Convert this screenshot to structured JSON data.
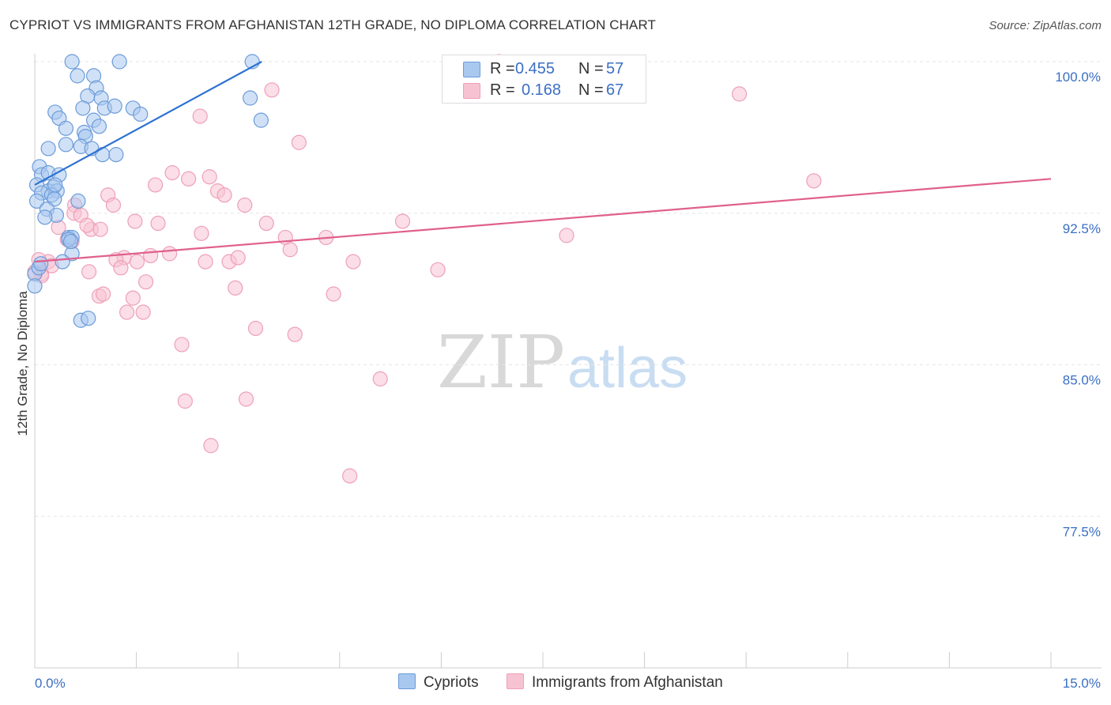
{
  "title": "CYPRIOT VS IMMIGRANTS FROM AFGHANISTAN 12TH GRADE, NO DIPLOMA CORRELATION CHART",
  "source": "Source: ZipAtlas.com",
  "watermark": {
    "zip": "ZIP",
    "atlas": "atlas"
  },
  "colors": {
    "blue_fill": "#a9c8f0",
    "blue_stroke": "#6b9bd8",
    "blue_line": "#2e72d2",
    "pink_fill": "#f7c3d3",
    "pink_stroke": "#eea0b8",
    "pink_line": "#e0608c",
    "axis_label": "#3a6fc4",
    "grid": "#e6e6e6"
  },
  "legend": {
    "rows": [
      {
        "r_label": "R =",
        "r_value": "0.455",
        "n_label": "N =",
        "n_value": "57"
      },
      {
        "r_label": "R =",
        "r_value": "0.168",
        "n_label": "N =",
        "n_value": "67"
      }
    ]
  },
  "bottom_legend": [
    "Cypriots",
    "Immigrants from Afghanistan"
  ],
  "chart_data": {
    "type": "scatter",
    "title": "CYPRIOT VS IMMIGRANTS FROM AFGHANISTAN 12TH GRADE, NO DIPLOMA CORRELATION CHART",
    "xlabel": "",
    "ylabel": "12th Grade, No Diploma",
    "xlim": [
      0,
      15
    ],
    "ylim": [
      70.0,
      100.0
    ],
    "x_tick_labels": [
      "0.0%",
      "15.0%"
    ],
    "y_ticks": [
      77.5,
      85.0,
      92.5,
      100.0
    ],
    "y_tick_labels": [
      "77.5%",
      "85.0%",
      "92.5%",
      "100.0%"
    ],
    "grid": true,
    "legend_position": "top-center",
    "series": [
      {
        "name": "Cypriots",
        "r": 0.455,
        "n": 57,
        "trend": {
          "x": [
            0.0,
            3.35
          ],
          "y": [
            93.9,
            100.0
          ]
        },
        "points": [
          [
            0.55,
            100.0
          ],
          [
            1.25,
            100.0
          ],
          [
            3.21,
            100.0
          ],
          [
            0.63,
            99.3
          ],
          [
            0.87,
            99.3
          ],
          [
            0.91,
            98.7
          ],
          [
            0.98,
            98.2
          ],
          [
            0.78,
            98.3
          ],
          [
            0.71,
            97.7
          ],
          [
            1.03,
            97.7
          ],
          [
            1.45,
            97.7
          ],
          [
            0.3,
            97.5
          ],
          [
            1.56,
            97.4
          ],
          [
            0.36,
            97.2
          ],
          [
            0.87,
            97.1
          ],
          [
            3.34,
            97.1
          ],
          [
            3.18,
            98.2
          ],
          [
            0.46,
            96.7
          ],
          [
            0.73,
            96.5
          ],
          [
            0.75,
            96.3
          ],
          [
            0.46,
            95.9
          ],
          [
            0.2,
            95.7
          ],
          [
            0.68,
            95.8
          ],
          [
            0.84,
            95.7
          ],
          [
            1.0,
            95.4
          ],
          [
            1.2,
            95.4
          ],
          [
            0.07,
            94.8
          ],
          [
            0.1,
            94.4
          ],
          [
            0.2,
            94.5
          ],
          [
            0.36,
            94.4
          ],
          [
            0.03,
            93.9
          ],
          [
            0.28,
            93.8
          ],
          [
            0.2,
            93.6
          ],
          [
            0.33,
            93.6
          ],
          [
            0.1,
            93.5
          ],
          [
            0.25,
            93.4
          ],
          [
            0.03,
            93.1
          ],
          [
            0.29,
            93.2
          ],
          [
            0.64,
            93.1
          ],
          [
            0.18,
            92.7
          ],
          [
            0.32,
            92.4
          ],
          [
            0.15,
            92.3
          ],
          [
            0.5,
            91.3
          ],
          [
            0.55,
            91.3
          ],
          [
            0.55,
            90.5
          ],
          [
            0.41,
            90.1
          ],
          [
            0.0,
            89.5
          ],
          [
            0.0,
            88.9
          ],
          [
            0.68,
            87.2
          ],
          [
            0.79,
            87.3
          ],
          [
            0.06,
            89.8
          ],
          [
            0.09,
            90.0
          ],
          [
            0.5,
            91.2
          ],
          [
            0.53,
            91.1
          ],
          [
            1.18,
            97.8
          ],
          [
            0.95,
            96.8
          ],
          [
            0.3,
            93.9
          ]
        ]
      },
      {
        "name": "Immigrants from Afghanistan",
        "r": 0.168,
        "n": 67,
        "trend": {
          "x": [
            0.0,
            15.0
          ],
          "y": [
            90.1,
            94.2
          ]
        },
        "points": [
          [
            6.85,
            100.0
          ],
          [
            3.5,
            98.6
          ],
          [
            10.4,
            98.4
          ],
          [
            2.44,
            97.3
          ],
          [
            3.9,
            96.0
          ],
          [
            2.03,
            94.5
          ],
          [
            2.27,
            94.2
          ],
          [
            2.58,
            94.3
          ],
          [
            11.5,
            94.1
          ],
          [
            1.78,
            93.9
          ],
          [
            2.7,
            93.6
          ],
          [
            1.08,
            93.4
          ],
          [
            2.8,
            93.4
          ],
          [
            0.59,
            92.9
          ],
          [
            1.16,
            92.9
          ],
          [
            3.1,
            92.9
          ],
          [
            0.58,
            92.5
          ],
          [
            0.68,
            92.4
          ],
          [
            1.48,
            92.1
          ],
          [
            1.82,
            92.0
          ],
          [
            3.42,
            92.0
          ],
          [
            5.43,
            92.1
          ],
          [
            0.83,
            91.7
          ],
          [
            0.97,
            91.7
          ],
          [
            2.46,
            91.5
          ],
          [
            0.35,
            91.8
          ],
          [
            0.77,
            91.9
          ],
          [
            3.7,
            91.3
          ],
          [
            4.3,
            91.3
          ],
          [
            7.85,
            91.4
          ],
          [
            0.48,
            91.2
          ],
          [
            0.55,
            91.1
          ],
          [
            3.77,
            90.7
          ],
          [
            1.99,
            90.5
          ],
          [
            1.71,
            90.4
          ],
          [
            1.32,
            90.3
          ],
          [
            1.2,
            90.2
          ],
          [
            1.51,
            90.1
          ],
          [
            2.52,
            90.1
          ],
          [
            2.87,
            90.1
          ],
          [
            3.0,
            90.3
          ],
          [
            4.7,
            90.1
          ],
          [
            0.2,
            90.1
          ],
          [
            0.25,
            89.9
          ],
          [
            0.8,
            89.6
          ],
          [
            1.27,
            89.8
          ],
          [
            5.95,
            89.7
          ],
          [
            0.1,
            89.5
          ],
          [
            0.1,
            89.4
          ],
          [
            1.64,
            89.1
          ],
          [
            2.96,
            88.8
          ],
          [
            0.95,
            88.4
          ],
          [
            1.01,
            88.5
          ],
          [
            1.45,
            88.3
          ],
          [
            4.41,
            88.5
          ],
          [
            1.36,
            87.6
          ],
          [
            1.6,
            87.6
          ],
          [
            3.26,
            86.8
          ],
          [
            3.84,
            86.5
          ],
          [
            2.17,
            86.0
          ],
          [
            5.1,
            84.3
          ],
          [
            2.22,
            83.2
          ],
          [
            3.12,
            83.3
          ],
          [
            2.6,
            81.0
          ],
          [
            4.65,
            79.5
          ],
          [
            0.0,
            89.6
          ],
          [
            0.06,
            90.2
          ]
        ]
      }
    ]
  }
}
